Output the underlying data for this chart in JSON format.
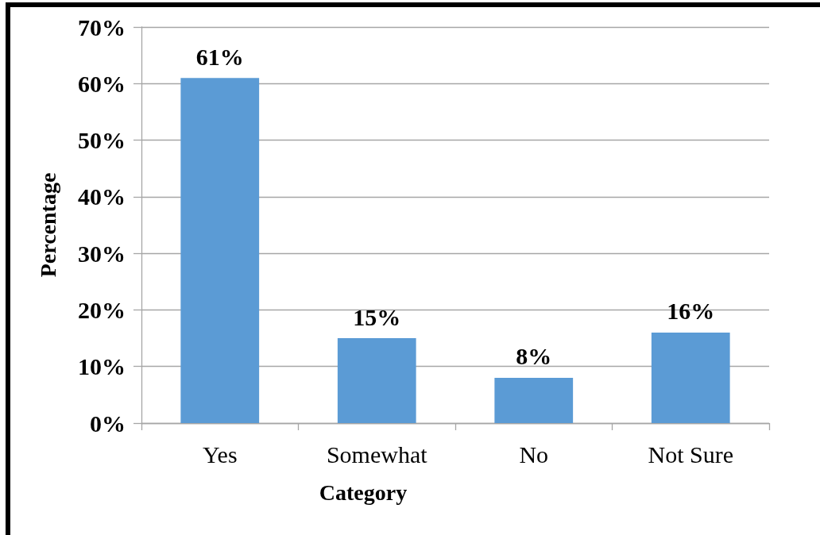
{
  "chart_data": {
    "type": "bar",
    "xlabel": "Category",
    "ylabel": "Percentage",
    "categories": [
      "Yes",
      "Somewhat",
      "No",
      "Not Sure"
    ],
    "values": [
      61,
      15,
      8,
      16
    ],
    "color": "#5b9bd5",
    "value_labels": [
      "61%",
      "15%",
      "8%",
      "16%"
    ],
    "ylim": [
      0,
      70
    ],
    "yticks": [
      {
        "value": 0,
        "label": "0%"
      },
      {
        "value": 10,
        "label": "10%"
      },
      {
        "value": 20,
        "label": "20%"
      },
      {
        "value": 30,
        "label": "30%"
      },
      {
        "value": 40,
        "label": "40%"
      },
      {
        "value": 50,
        "label": "50%"
      },
      {
        "value": 60,
        "label": "60%"
      },
      {
        "value": 70,
        "label": "70%"
      }
    ],
    "grid": "y"
  }
}
